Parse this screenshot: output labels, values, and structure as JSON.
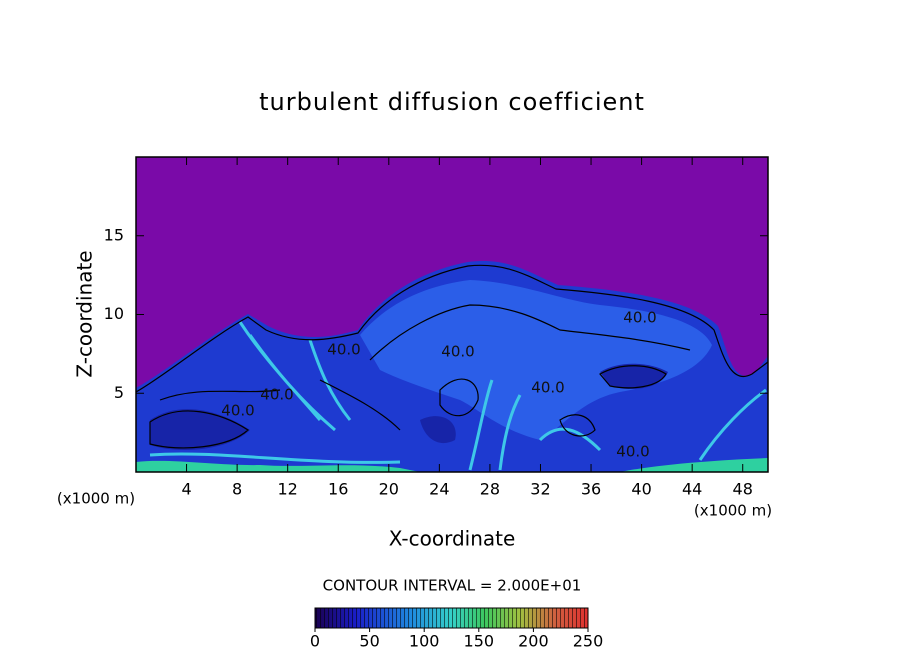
{
  "chart_data": {
    "type": "contour",
    "title": "turbulent diffusion coefficient",
    "xlabel": "X-coordinate",
    "ylabel": "Z-coordinate",
    "x_unit": "(x1000 m)",
    "xlim": [
      0,
      50
    ],
    "xticks": [
      4,
      8,
      12,
      16,
      20,
      24,
      28,
      32,
      36,
      40,
      44,
      48
    ],
    "ylim": [
      0,
      20
    ],
    "yticks": [
      5,
      10,
      15
    ],
    "contour_interval": "CONTOUR INTERVAL = 2.000E+01",
    "contour_labels": [
      "40.0",
      "40.0",
      "40.0",
      "40.0",
      "40.0",
      "40.0",
      "40.0"
    ],
    "colorbar": {
      "lim": [
        0,
        250
      ],
      "ticks": [
        0,
        50,
        100,
        150,
        200,
        250
      ]
    }
  }
}
